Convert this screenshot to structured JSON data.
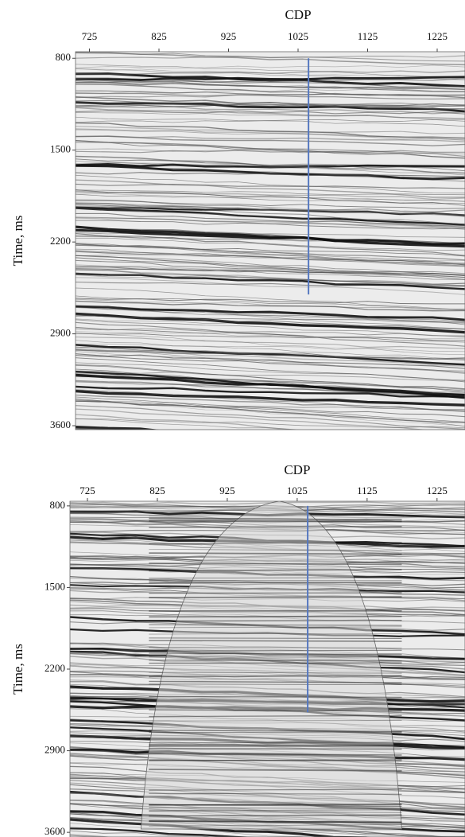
{
  "chart_data": [
    {
      "type": "seismic",
      "title": "CDP",
      "y_label": "Time, ms",
      "xlim": [
        705,
        1265
      ],
      "xticks": [
        725,
        825,
        925,
        1025,
        1125,
        1225
      ],
      "ylim": [
        750,
        3630
      ],
      "yticks": [
        800,
        1500,
        2200,
        2900,
        3600
      ],
      "y_inverted": true,
      "well": {
        "x": 1040,
        "y": [
          800,
          2600
        ],
        "color": "#5578c0"
      }
    },
    {
      "type": "seismic",
      "title": "CDP",
      "y_label": "Time, ms",
      "migrated_zone": true,
      "xlim": [
        700,
        1265
      ],
      "xticks": [
        725,
        825,
        925,
        1025,
        1125,
        1225
      ],
      "ylim": [
        760,
        3640
      ],
      "yticks": [
        800,
        1500,
        2200,
        2900,
        3600
      ],
      "y_inverted": true,
      "well": {
        "x": 1040,
        "y": [
          800,
          2570
        ],
        "color": "#5578c0"
      }
    }
  ]
}
